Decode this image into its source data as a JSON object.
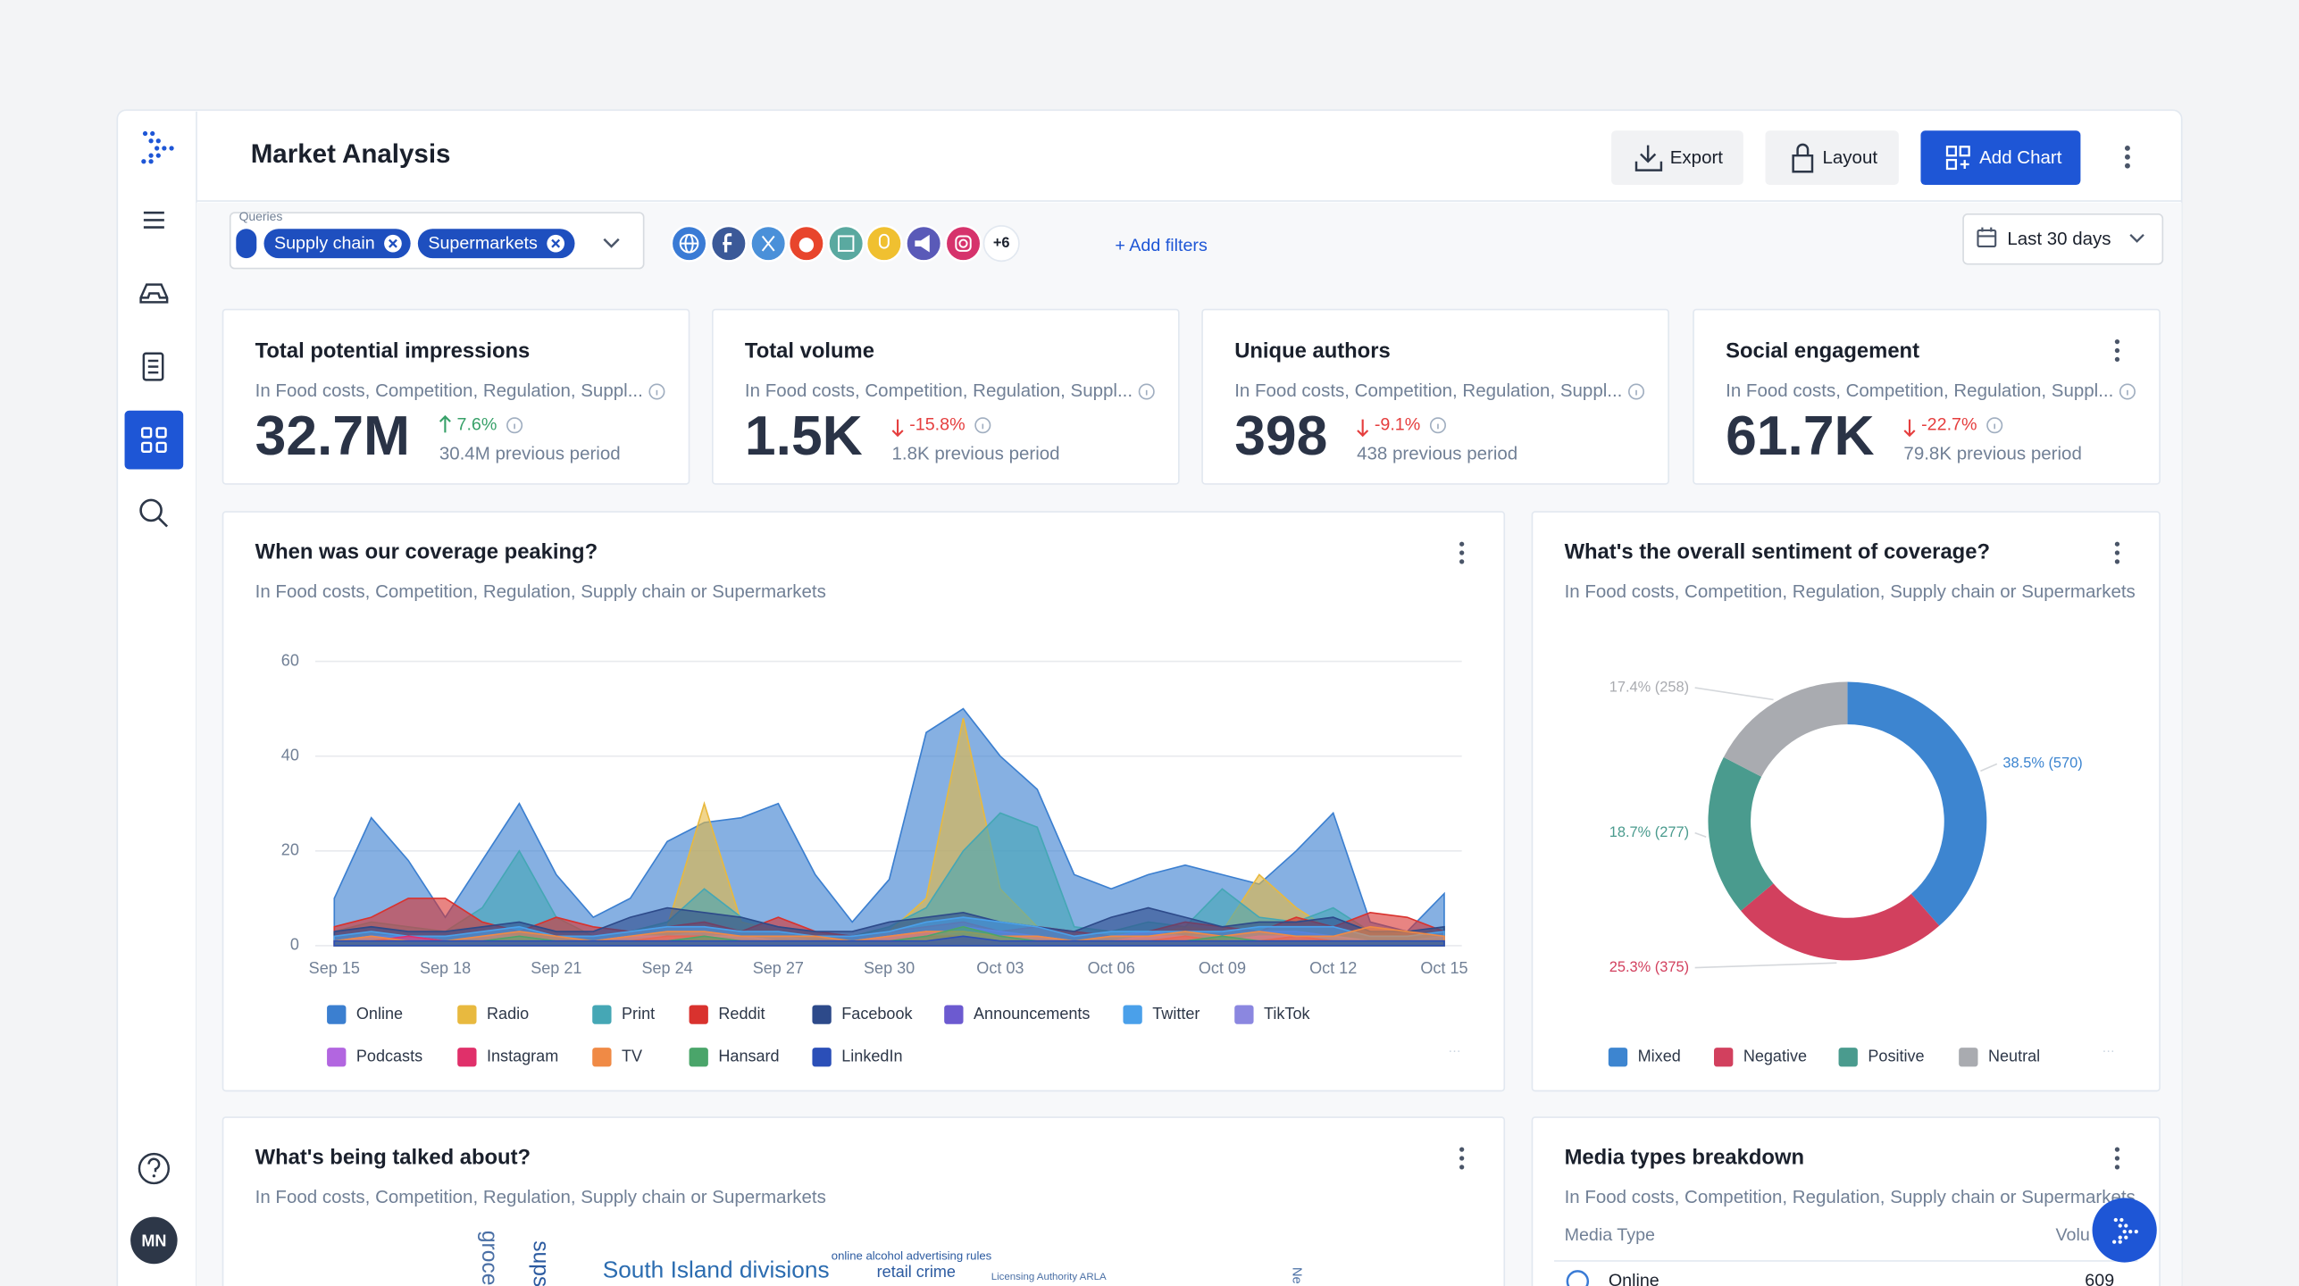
{
  "header": {
    "title": "Market Analysis",
    "buttons": [
      "Export",
      "Layout",
      "Add Chart"
    ]
  },
  "sidebar": {
    "avatar": "MN"
  },
  "filters": {
    "queries_label": "Queries",
    "queries": [
      "Supply chain",
      "Supermarkets"
    ],
    "more_sources": "+6",
    "add_filters": "+ Add filters",
    "date_range": "Last 30 days"
  },
  "kpis": [
    {
      "title": "Total potential impressions",
      "subtitle": "In Food costs, Competition, Regulation, Suppl...",
      "value": "32.7M",
      "change": "7.6%",
      "direction": "up",
      "previous": "30.4M previous period"
    },
    {
      "title": "Total volume",
      "subtitle": "In Food costs, Competition, Regulation, Suppl...",
      "value": "1.5K",
      "change": "-15.8%",
      "direction": "down",
      "previous": "1.8K previous period"
    },
    {
      "title": "Unique authors",
      "subtitle": "In Food costs, Competition, Regulation, Suppl...",
      "value": "398",
      "change": "-9.1%",
      "direction": "down",
      "previous": "438 previous period"
    },
    {
      "title": "Social engagement",
      "subtitle": "In Food costs, Competition, Regulation, Suppl...",
      "value": "61.7K",
      "change": "-22.7%",
      "direction": "down",
      "previous": "79.8K previous period"
    }
  ],
  "chart_data": [
    {
      "type": "area",
      "title": "When was our coverage peaking?",
      "subtitle": "In Food costs, Competition, Regulation, Supply chain or Supermarkets",
      "categories": [
        "Sep 15",
        null,
        null,
        "Sep 18",
        null,
        null,
        "Sep 21",
        null,
        null,
        "Sep 24",
        null,
        null,
        "Sep 27",
        null,
        null,
        "Sep 30",
        null,
        null,
        "Oct 03",
        null,
        null,
        "Oct 06",
        null,
        null,
        "Oct 09",
        null,
        null,
        "Oct 12",
        null,
        null,
        "Oct 15"
      ],
      "ylim": [
        0,
        60
      ],
      "yticks": [
        0,
        20,
        40,
        60
      ],
      "grid": true,
      "series": [
        {
          "name": "Online",
          "color": "#3b7fd0",
          "values": [
            10,
            27,
            18,
            6,
            18,
            30,
            15,
            6,
            10,
            22,
            26,
            27,
            30,
            15,
            5,
            14,
            45,
            50,
            40,
            33,
            15,
            12,
            15,
            17,
            15,
            13,
            20,
            28,
            5,
            3,
            11
          ]
        },
        {
          "name": "Radio",
          "color": "#e8b93f",
          "values": [
            2,
            3,
            2,
            1,
            2,
            3,
            2,
            1,
            2,
            4,
            30,
            5,
            3,
            2,
            1,
            3,
            10,
            48,
            12,
            4,
            2,
            3,
            2,
            4,
            3,
            15,
            8,
            3,
            2,
            2,
            3
          ]
        },
        {
          "name": "Print",
          "color": "#45a7b5",
          "values": [
            3,
            5,
            4,
            3,
            8,
            20,
            6,
            2,
            3,
            5,
            12,
            6,
            4,
            3,
            2,
            4,
            8,
            20,
            28,
            25,
            4,
            3,
            5,
            4,
            12,
            6,
            5,
            8,
            3,
            2,
            4
          ]
        },
        {
          "name": "Reddit",
          "color": "#d9322e",
          "values": [
            4,
            6,
            10,
            10,
            5,
            3,
            6,
            4,
            3,
            4,
            5,
            3,
            6,
            3,
            2,
            3,
            4,
            5,
            3,
            4,
            3,
            2,
            3,
            5,
            4,
            3,
            6,
            4,
            7,
            6,
            3
          ]
        },
        {
          "name": "Facebook",
          "color": "#2d4a8a",
          "values": [
            3,
            4,
            3,
            3,
            4,
            5,
            3,
            3,
            6,
            8,
            7,
            6,
            4,
            3,
            3,
            5,
            6,
            7,
            5,
            4,
            3,
            6,
            8,
            6,
            4,
            5,
            5,
            6,
            3,
            3,
            4
          ]
        },
        {
          "name": "Announcements",
          "color": "#6c5ad0",
          "values": [
            1,
            2,
            2,
            1,
            2,
            2,
            1,
            1,
            2,
            2,
            3,
            2,
            2,
            1,
            1,
            2,
            2,
            4,
            3,
            2,
            1,
            2,
            3,
            2,
            2,
            3,
            3,
            2,
            1,
            1,
            2
          ]
        },
        {
          "name": "Twitter",
          "color": "#4aa0ea",
          "values": [
            2,
            3,
            2,
            2,
            3,
            4,
            2,
            2,
            3,
            4,
            4,
            3,
            3,
            2,
            2,
            3,
            5,
            6,
            5,
            4,
            2,
            3,
            3,
            3,
            3,
            4,
            4,
            4,
            2,
            2,
            3
          ]
        },
        {
          "name": "TikTok",
          "color": "#8b87e0",
          "values": [
            1,
            1,
            2,
            1,
            1,
            2,
            1,
            1,
            1,
            2,
            2,
            2,
            1,
            1,
            1,
            1,
            2,
            3,
            2,
            2,
            1,
            1,
            2,
            2,
            1,
            2,
            2,
            2,
            1,
            1,
            1
          ]
        },
        {
          "name": "Podcasts",
          "color": "#b266e0",
          "values": [
            1,
            2,
            1,
            1,
            1,
            2,
            1,
            1,
            2,
            2,
            2,
            1,
            1,
            1,
            1,
            2,
            3,
            2,
            2,
            1,
            1,
            1,
            2,
            2,
            1,
            2,
            2,
            1,
            1,
            1,
            1
          ]
        },
        {
          "name": "Instagram",
          "color": "#e0306a",
          "values": [
            1,
            1,
            2,
            1,
            1,
            1,
            1,
            1,
            1,
            2,
            2,
            1,
            1,
            1,
            1,
            1,
            2,
            2,
            1,
            1,
            1,
            1,
            1,
            2,
            1,
            1,
            2,
            1,
            1,
            1,
            1
          ]
        },
        {
          "name": "TV",
          "color": "#f08a45",
          "values": [
            1,
            2,
            1,
            1,
            2,
            3,
            2,
            1,
            2,
            3,
            3,
            2,
            2,
            2,
            1,
            2,
            3,
            3,
            2,
            2,
            1,
            2,
            2,
            3,
            2,
            3,
            2,
            2,
            4,
            3,
            2
          ]
        },
        {
          "name": "Hansard",
          "color": "#4aa56a",
          "values": [
            1,
            1,
            1,
            1,
            1,
            2,
            1,
            1,
            1,
            1,
            2,
            1,
            1,
            1,
            1,
            1,
            2,
            4,
            2,
            1,
            1,
            1,
            1,
            1,
            2,
            1,
            1,
            1,
            1,
            1,
            1
          ]
        },
        {
          "name": "LinkedIn",
          "color": "#2b4fb8",
          "values": [
            1,
            1,
            1,
            1,
            1,
            1,
            1,
            1,
            1,
            1,
            1,
            1,
            1,
            1,
            1,
            1,
            1,
            2,
            1,
            1,
            1,
            1,
            1,
            1,
            1,
            1,
            1,
            1,
            1,
            1,
            1
          ]
        }
      ]
    },
    {
      "type": "donut",
      "title": "What's the overall sentiment of coverage?",
      "subtitle": "In Food costs, Competition, Regulation, Supply chain or Supermarkets",
      "categories": [
        "Mixed",
        "Negative",
        "Positive",
        "Neutral"
      ],
      "values": [
        38.5,
        25.3,
        18.7,
        17.4
      ],
      "value_labels": [
        "38.5% (570)",
        "25.3% (375)",
        "18.7% (277)",
        "17.4% (258)"
      ],
      "colors": [
        "#3d85d0",
        "#d2405e",
        "#4a9b8e",
        "#a9abb0"
      ]
    }
  ],
  "panels": [
    {
      "title": "What's being talked about?",
      "subtitle": "In Food costs, Competition, Regulation, Supply chain or Supermarkets",
      "words": [
        "groce",
        "sups",
        "South Island divisions",
        "online alcohol advertising rules",
        "retail crime",
        "Licensing Authority ARLA",
        "Ne"
      ]
    },
    {
      "title": "Media types breakdown",
      "subtitle": "In Food costs, Competition, Regulation, Supply chain or Supermarkets",
      "columns": [
        "Media Type",
        "Volu"
      ],
      "rows": [
        [
          "Online",
          "609"
        ]
      ]
    }
  ]
}
